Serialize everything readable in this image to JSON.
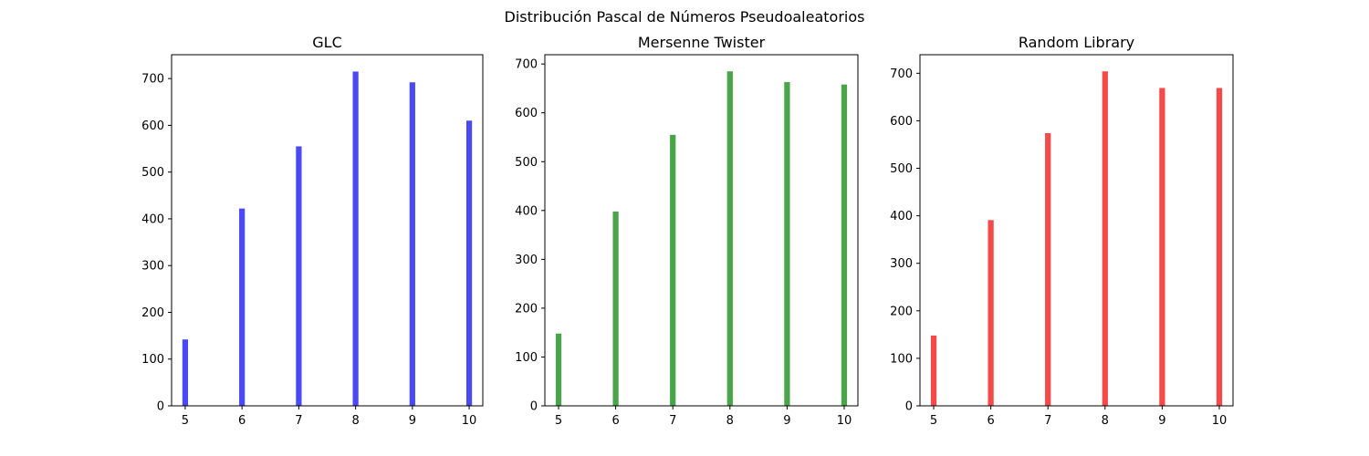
{
  "figure": {
    "suptitle": "Distribución Pascal de Números Pseudoaleatorios"
  },
  "chart_data": [
    {
      "type": "bar",
      "title": "GLC",
      "xlabel": "",
      "ylabel": "",
      "color": "#4a4af5",
      "x": [
        5,
        6,
        7,
        8,
        9,
        10
      ],
      "values": [
        142,
        422,
        555,
        715,
        692,
        610
      ],
      "xlim": [
        4.76,
        10.24
      ],
      "ylim": [
        0,
        751
      ],
      "xticks": [
        5,
        6,
        7,
        8,
        9,
        10
      ],
      "yticks": [
        0,
        100,
        200,
        300,
        400,
        500,
        600,
        700
      ],
      "grid": false,
      "legend": "none"
    },
    {
      "type": "bar",
      "title": "Mersenne Twister",
      "xlabel": "",
      "ylabel": "",
      "color": "#4aa54a",
      "x": [
        5,
        6,
        7,
        8,
        9,
        10
      ],
      "values": [
        148,
        398,
        555,
        685,
        663,
        658
      ],
      "xlim": [
        4.76,
        10.24
      ],
      "ylim": [
        0,
        719
      ],
      "xticks": [
        5,
        6,
        7,
        8,
        9,
        10
      ],
      "yticks": [
        0,
        100,
        200,
        300,
        400,
        500,
        600,
        700
      ],
      "grid": false,
      "legend": "none"
    },
    {
      "type": "bar",
      "title": "Random Library",
      "xlabel": "",
      "ylabel": "",
      "color": "#f54a4a",
      "x": [
        5,
        6,
        7,
        8,
        9,
        10
      ],
      "values": [
        148,
        391,
        574,
        704,
        669,
        669
      ],
      "xlim": [
        4.76,
        10.24
      ],
      "ylim": [
        0,
        739
      ],
      "xticks": [
        5,
        6,
        7,
        8,
        9,
        10
      ],
      "yticks": [
        0,
        100,
        200,
        300,
        400,
        500,
        600,
        700
      ],
      "grid": false,
      "legend": "none"
    }
  ]
}
